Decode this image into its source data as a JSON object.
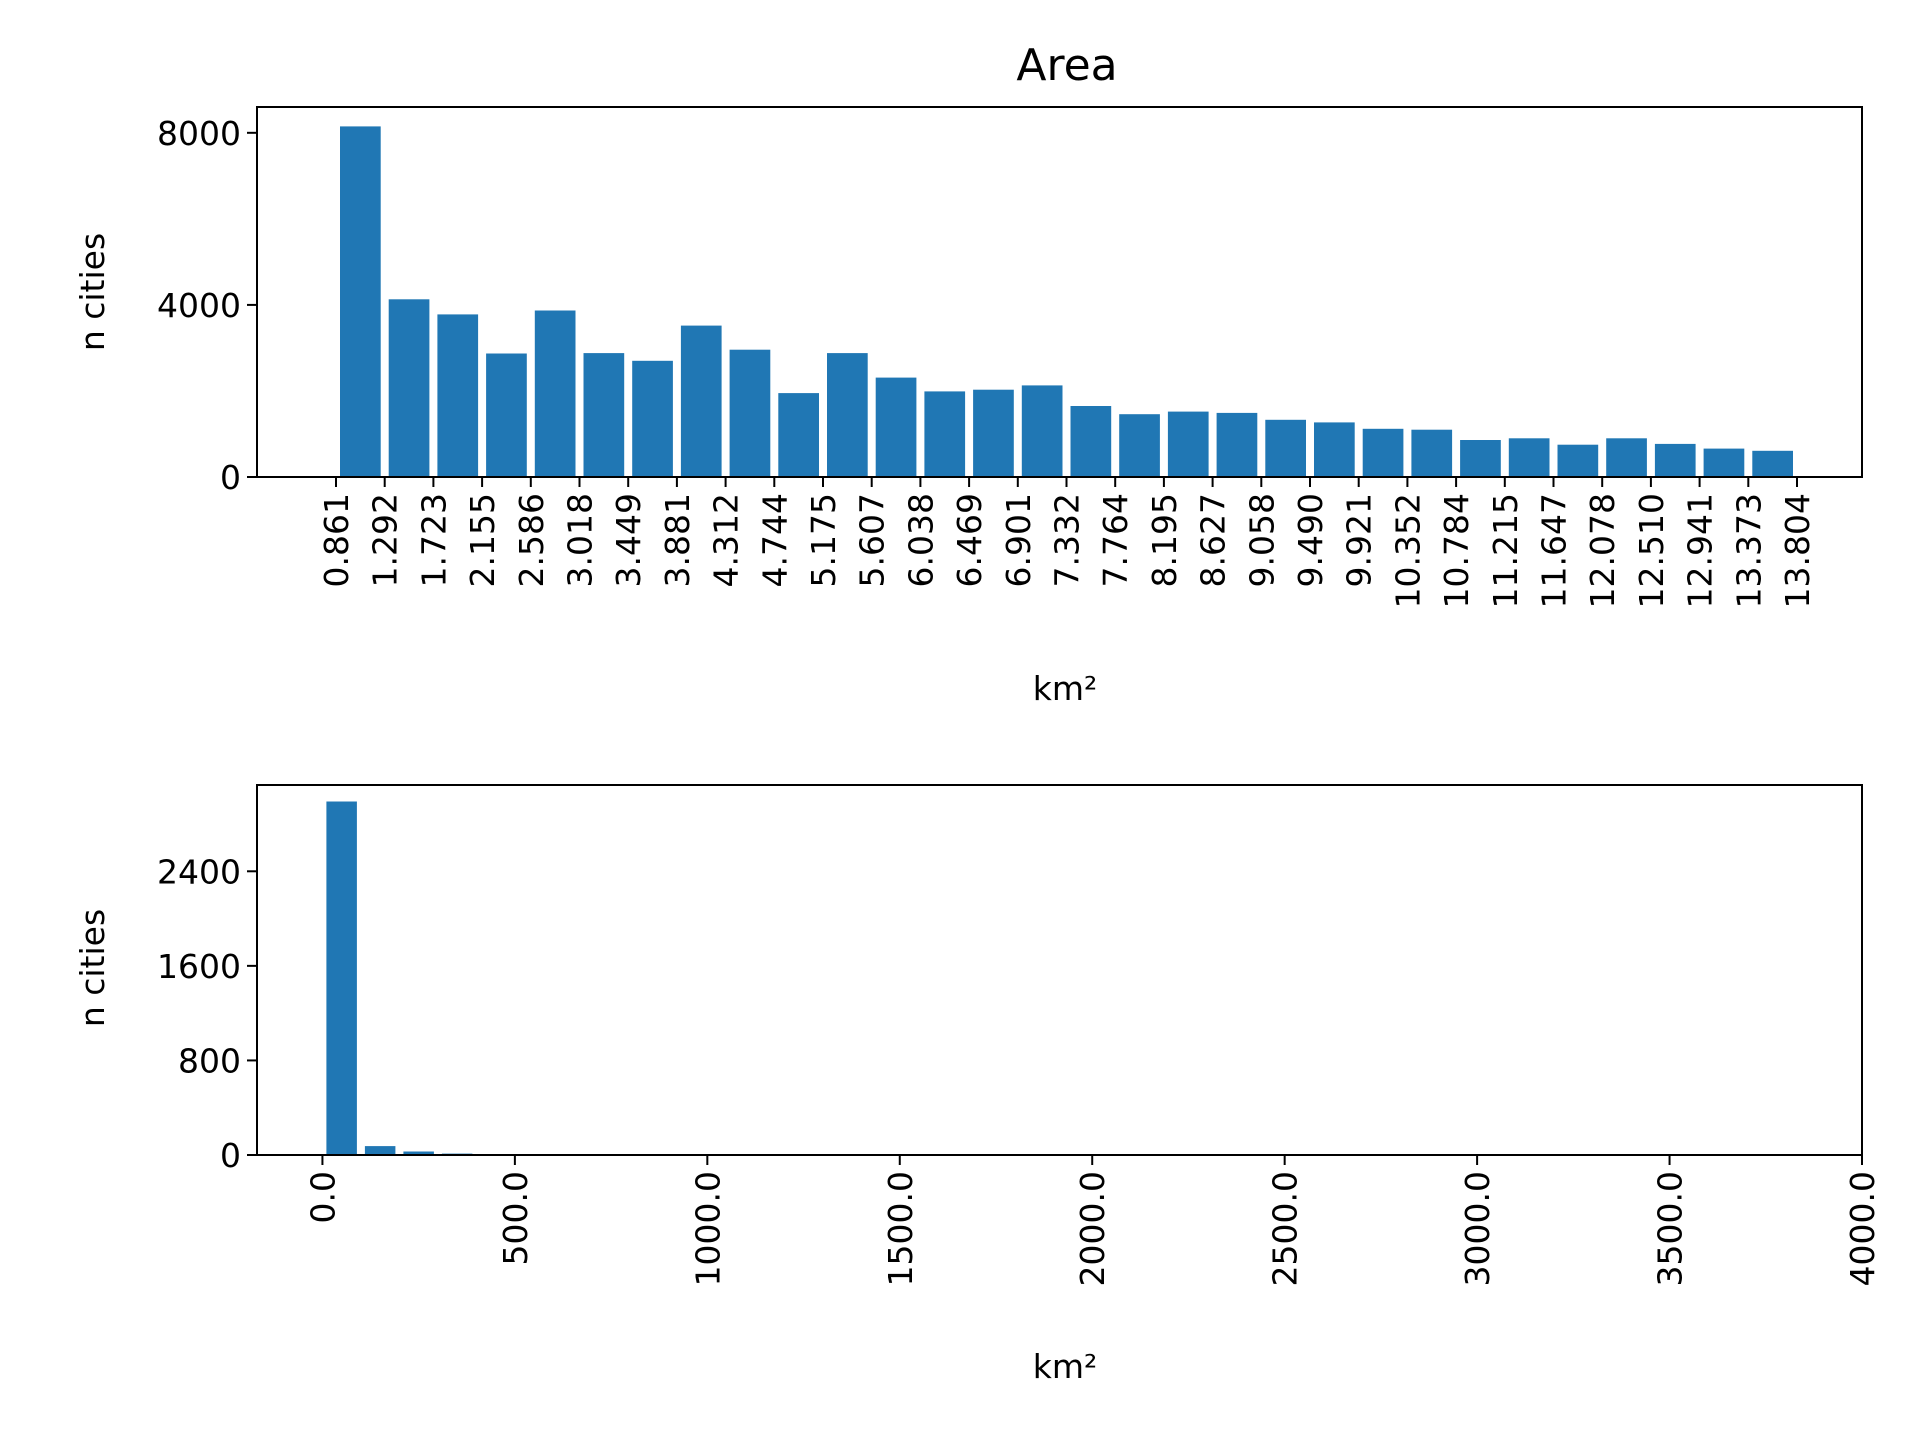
{
  "figure": {
    "title": "Area"
  },
  "chart_data": [
    {
      "type": "bar",
      "title": "Area",
      "xlabel": "km²",
      "ylabel": "n cities",
      "bar_color": "#2077b4",
      "bin_edges": [
        "0.861",
        "1.292",
        "1.723",
        "2.155",
        "2.586",
        "3.018",
        "3.449",
        "3.881",
        "4.312",
        "4.744",
        "5.175",
        "5.607",
        "6.038",
        "6.469",
        "6.901",
        "7.332",
        "7.764",
        "8.195",
        "8.627",
        "9.058",
        "9.490",
        "9.921",
        "10.352",
        "10.784",
        "11.215",
        "11.647",
        "12.078",
        "12.510",
        "12.941",
        "13.373",
        "13.804"
      ],
      "values": [
        8150,
        4130,
        3780,
        2870,
        3870,
        2880,
        2700,
        3520,
        2960,
        1950,
        2880,
        2310,
        1990,
        2030,
        2130,
        1650,
        1460,
        1520,
        1490,
        1330,
        1270,
        1120,
        1100,
        860,
        900,
        750,
        900,
        770,
        660,
        610
      ],
      "yticks": [
        "0",
        "4000",
        "8000"
      ],
      "ylim": [
        0,
        8600
      ]
    },
    {
      "type": "bar",
      "xlabel": "km²",
      "ylabel": "n cities",
      "bar_color": "#2077b4",
      "bin_width": 100,
      "bins": [
        {
          "x": 50,
          "value": 2990
        },
        {
          "x": 150,
          "value": 75
        },
        {
          "x": 250,
          "value": 30
        },
        {
          "x": 350,
          "value": 12
        },
        {
          "x": 450,
          "value": 6
        },
        {
          "x": 550,
          "value": 4
        },
        {
          "x": 650,
          "value": 3
        },
        {
          "x": 750,
          "value": 2
        }
      ],
      "xticks": [
        "0.0",
        "500.0",
        "1000.0",
        "1500.0",
        "2000.0",
        "2500.0",
        "3000.0",
        "3500.0",
        "4000.0"
      ],
      "yticks": [
        "0",
        "800",
        "1600",
        "2400"
      ],
      "xlim": [
        -170,
        4000
      ],
      "ylim": [
        0,
        3130
      ]
    }
  ]
}
